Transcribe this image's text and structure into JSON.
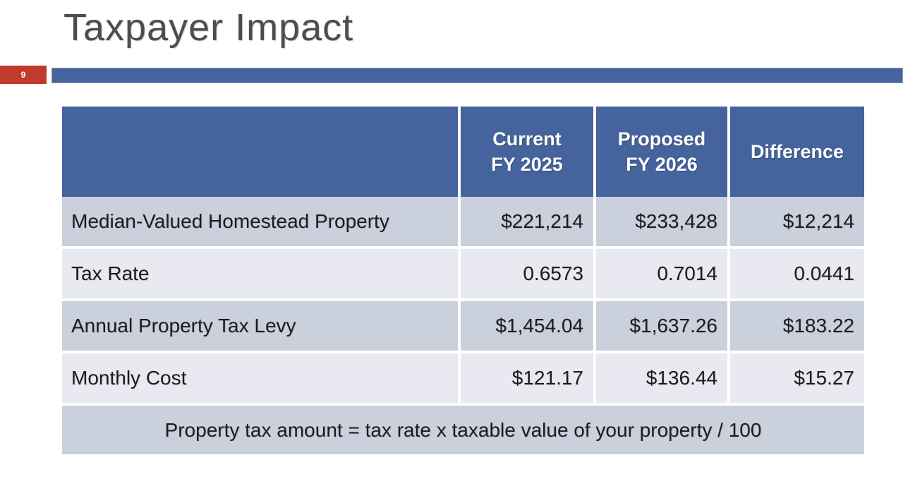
{
  "slide": {
    "title": "Taxpayer Impact",
    "page_number": "9"
  },
  "colors": {
    "accent_blue": "#45639C",
    "accent_red": "#C03B2C",
    "row_dark": "#CBD0DD",
    "row_light": "#E9EAF1",
    "header_text": "#FFFFFF",
    "body_text": "#1C1C1C",
    "title_text": "#4D4D4D"
  },
  "table": {
    "header": {
      "current": {
        "line1": "Current",
        "line2": "FY 2025"
      },
      "proposed": {
        "line1": "Proposed",
        "line2": "FY 2026"
      },
      "difference": "Difference"
    },
    "rows": [
      {
        "label": "Median-Valued Homestead Property",
        "current": "$221,214",
        "proposed": "$233,428",
        "difference": "$12,214"
      },
      {
        "label": "Tax Rate",
        "current": "0.6573",
        "proposed": "0.7014",
        "difference": "0.0441"
      },
      {
        "label": "Annual Property Tax Levy",
        "current": "$1,454.04",
        "proposed": "$1,637.26",
        "difference": "$183.22"
      },
      {
        "label": "Monthly Cost",
        "current": "$121.17",
        "proposed": "$136.44",
        "difference": "$15.27"
      }
    ],
    "footnote": "Property tax amount = tax rate x taxable value of your property / 100"
  },
  "chart_data": {
    "type": "table",
    "title": "Taxpayer Impact",
    "columns": [
      "",
      "Current FY 2025",
      "Proposed FY 2026",
      "Difference"
    ],
    "rows": [
      [
        "Median-Valued Homestead Property",
        "$221,214",
        "$233,428",
        "$12,214"
      ],
      [
        "Tax Rate",
        "0.6573",
        "0.7014",
        "0.0441"
      ],
      [
        "Annual Property Tax Levy",
        "$1,454.04",
        "$1,637.26",
        "$183.22"
      ],
      [
        "Monthly Cost",
        "$121.17",
        "$136.44",
        "$15.27"
      ]
    ],
    "footnote": "Property tax amount = tax rate x taxable value of your property / 100"
  }
}
